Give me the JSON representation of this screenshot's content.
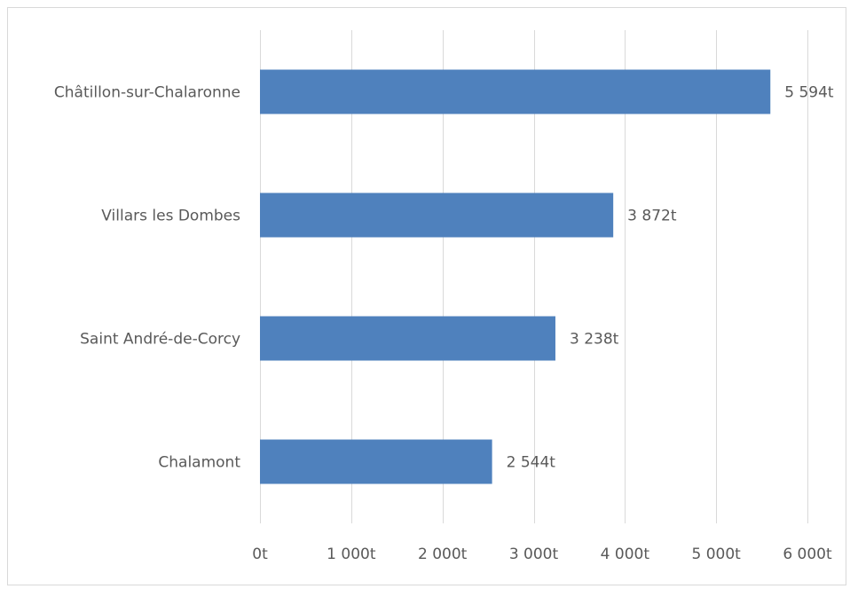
{
  "chart_data": {
    "type": "bar",
    "orientation": "horizontal",
    "categories": [
      "Châtillon-sur-Chalaronne",
      "Villars les Dombes",
      "Saint André-de-Corcy",
      "Chalamont"
    ],
    "values": [
      5594,
      3872,
      3238,
      2544
    ],
    "value_labels": [
      "5 594t",
      "3 872t",
      "3 238t",
      "2 544t"
    ],
    "x_ticks": [
      0,
      1000,
      2000,
      3000,
      4000,
      5000,
      6000
    ],
    "x_tick_labels": [
      "0t",
      "1 000t",
      "2 000t",
      "3 000t",
      "4 000t",
      "5 000t",
      "6 000t"
    ],
    "xlim": [
      0,
      6000
    ],
    "title": "",
    "xlabel": "",
    "ylabel": "",
    "grid": "vertical",
    "legend": "none",
    "bar_color": "#4f81bd",
    "grid_color": "#d9d9d9"
  }
}
